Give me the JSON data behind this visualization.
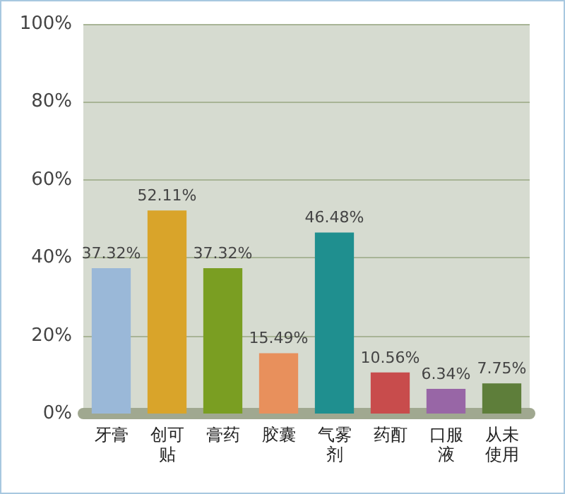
{
  "chart_data": {
    "type": "bar",
    "categories": [
      "牙膏",
      "创可贴",
      "膏药",
      "胶囊",
      "气雾剂",
      "药酊",
      "口服液",
      "从未使用"
    ],
    "values": [
      37.32,
      52.11,
      37.32,
      15.49,
      46.48,
      10.56,
      6.34,
      7.75
    ],
    "colors": [
      "#9ab8d8",
      "#d9a42a",
      "#7a9e22",
      "#e8905c",
      "#1f8f8f",
      "#c84c4c",
      "#9866a6",
      "#5e7e3a"
    ],
    "ylim": [
      0,
      100
    ],
    "yticks": [
      {
        "value": 0,
        "label": "0%"
      },
      {
        "value": 20,
        "label": "20%"
      },
      {
        "value": 40,
        "label": "40%"
      },
      {
        "value": 60,
        "label": "60%"
      },
      {
        "value": 80,
        "label": "80%"
      },
      {
        "value": 100,
        "label": "100%"
      }
    ],
    "value_labels": [
      "37.32%",
      "52.11%",
      "37.32%",
      "15.49%",
      "46.48%",
      "10.56%",
      "6.34%",
      "7.75%"
    ],
    "grid": "y"
  }
}
